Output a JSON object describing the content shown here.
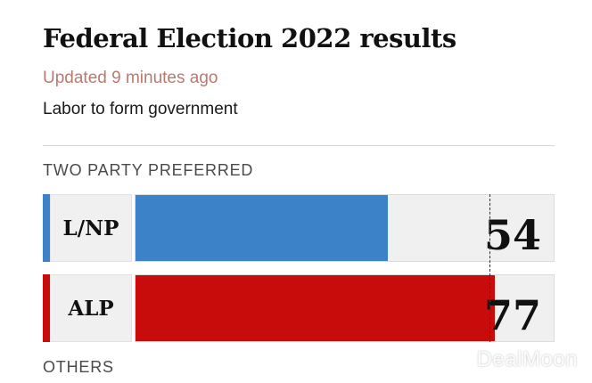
{
  "header": {
    "title": "Federal Election 2022 results",
    "updated": "Updated 9 minutes ago",
    "headline": "Labor to form government"
  },
  "sections": {
    "two_party": "TWO PARTY PREFERRED",
    "others": "OTHERS"
  },
  "watermark": "DealMoon",
  "colors": {
    "lnp": "#3b82c8",
    "alp": "#c80c0c"
  },
  "chart_data": {
    "type": "bar",
    "orientation": "horizontal",
    "title": "TWO PARTY PREFERRED",
    "categories": [
      "L/NP",
      "ALP"
    ],
    "values": [
      54,
      77
    ],
    "colors": [
      "#3b82c8",
      "#c80c0c"
    ],
    "majority": 76,
    "xlim": [
      0,
      90
    ]
  }
}
